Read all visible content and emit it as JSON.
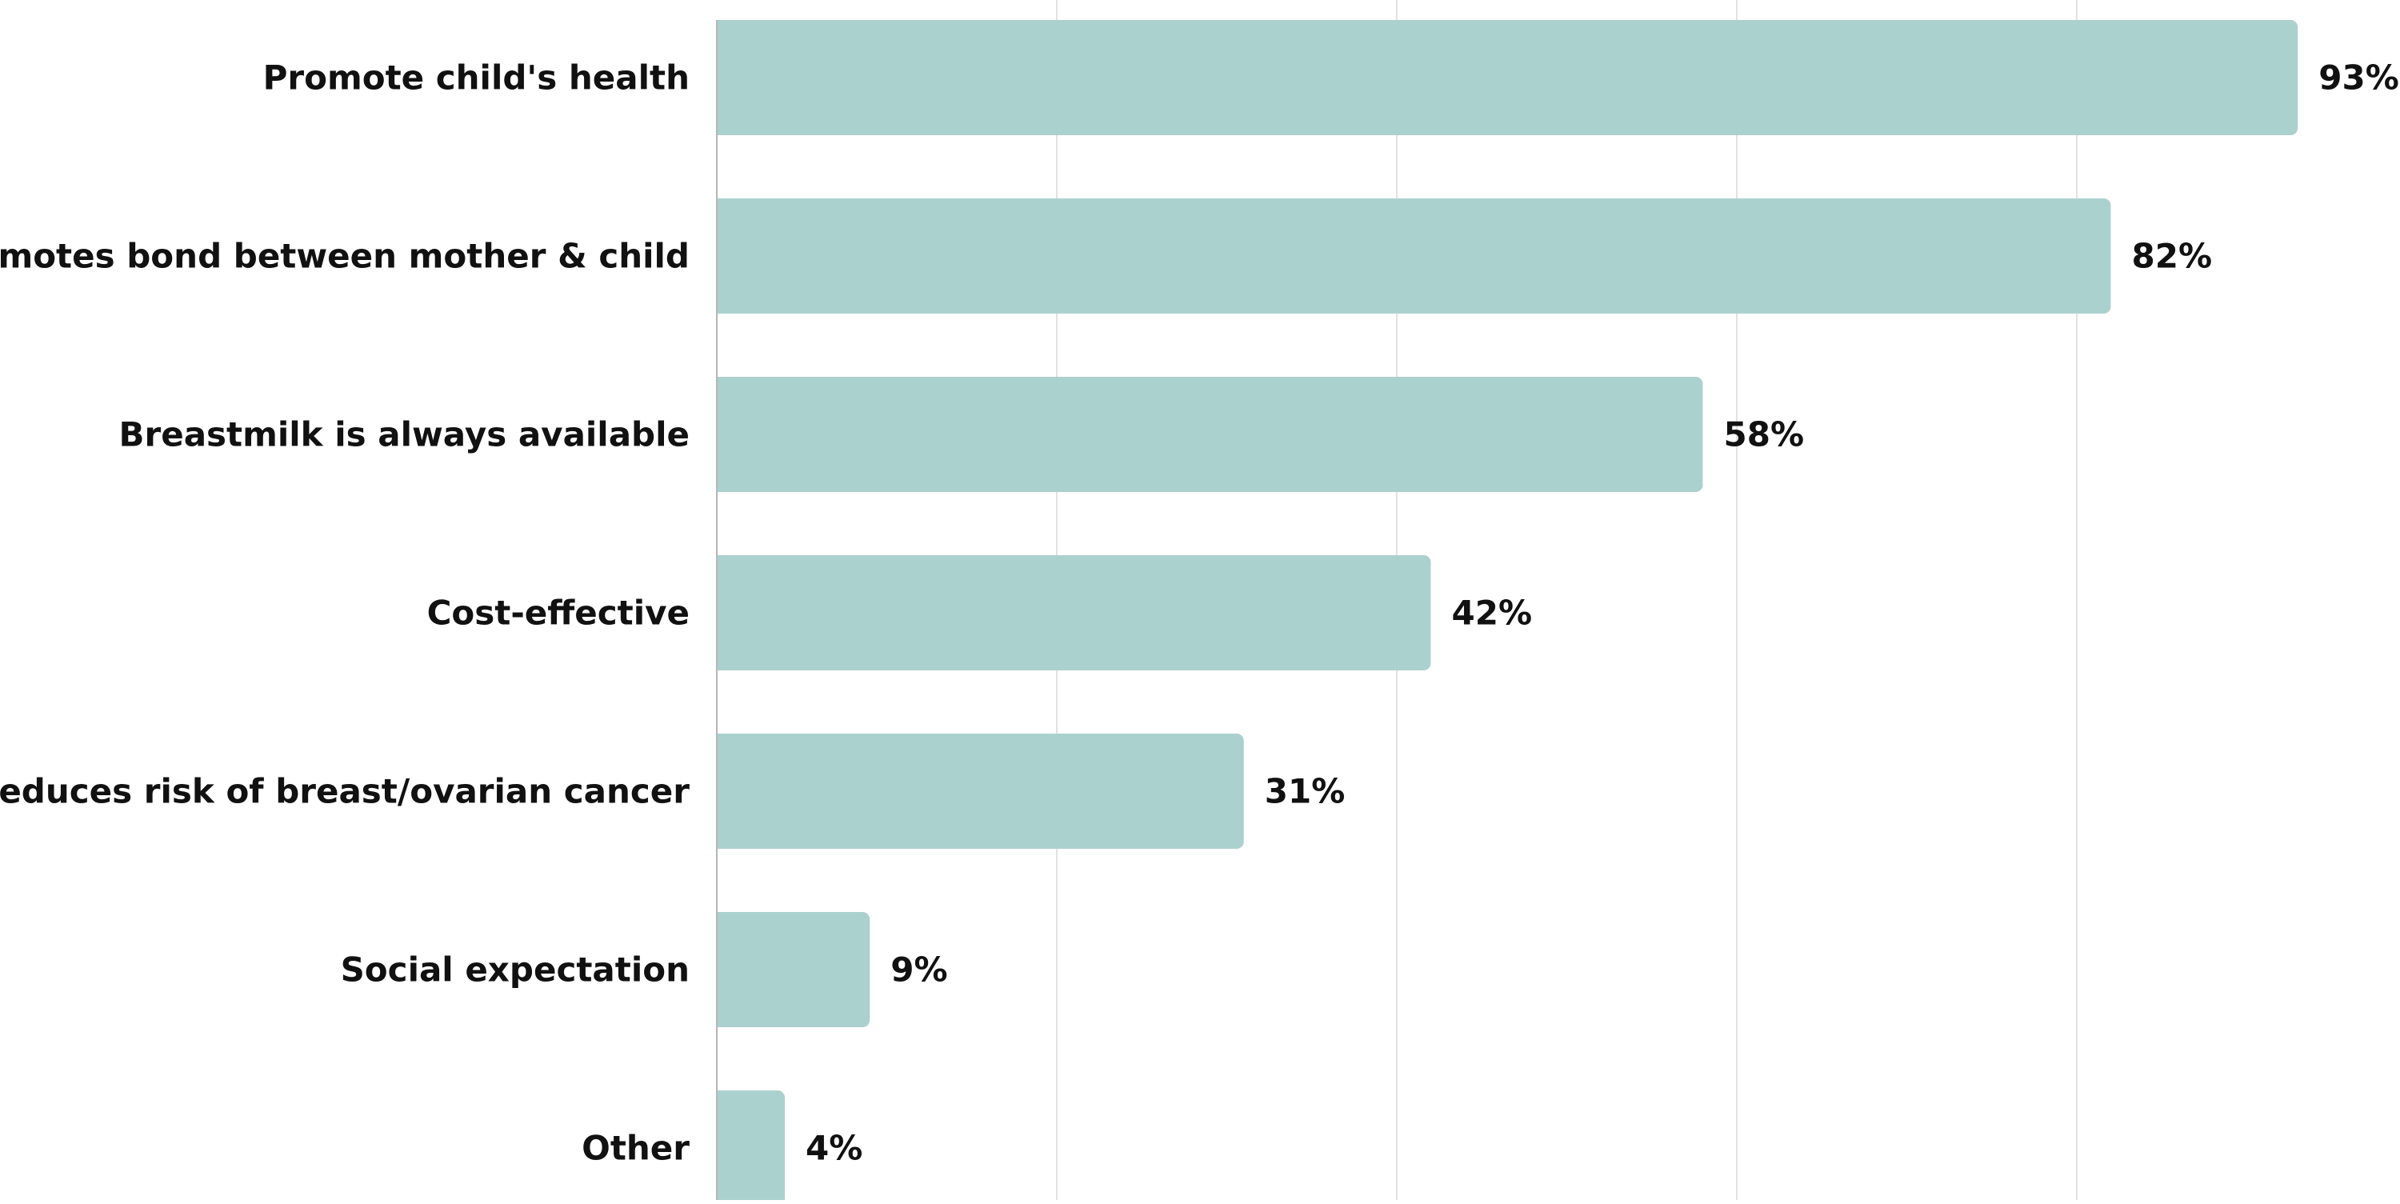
{
  "chart_data": {
    "type": "bar",
    "orientation": "horizontal",
    "categories": [
      "Promote child's health",
      "Promotes bond between mother & child",
      "Breastmilk is always available",
      "Cost-effective",
      "Reduces risk of breast/ovarian cancer",
      "Social expectation",
      "Other"
    ],
    "values": [
      93,
      82,
      58,
      42,
      31,
      9,
      4
    ],
    "value_labels": [
      "93%",
      "82%",
      "58%",
      "42%",
      "31%",
      "9%",
      "4%"
    ],
    "xlim": [
      0,
      100
    ],
    "gridlines_at": [
      0,
      20,
      40,
      60,
      80
    ],
    "grid": true,
    "legend": "none",
    "title": "",
    "xlabel": "",
    "ylabel": "",
    "colors": {
      "bar": "#abd1ce",
      "grid": "#e2e2e2",
      "axis": "#b5b5b5",
      "text": "#111111"
    }
  }
}
